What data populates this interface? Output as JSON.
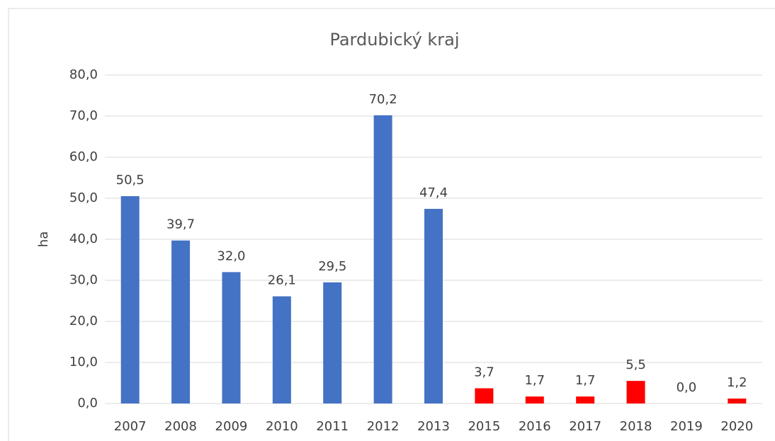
{
  "chart_data": {
    "type": "bar",
    "title": "Pardubický kraj",
    "y_label": "ha",
    "categories": [
      "2007",
      "2008",
      "2009",
      "2010",
      "2011",
      "2012",
      "2013",
      "2015",
      "2016",
      "2017",
      "2018",
      "2019",
      "2020"
    ],
    "values": [
      50.5,
      39.7,
      32.0,
      26.1,
      29.5,
      70.2,
      47.4,
      3.7,
      1.7,
      1.7,
      5.5,
      0.0,
      1.2
    ],
    "value_labels": [
      "50,5",
      "39,7",
      "32,0",
      "26,1",
      "29,5",
      "70,2",
      "47,4",
      "3,7",
      "1,7",
      "1,7",
      "5,5",
      "0,0",
      "1,2"
    ],
    "colors": [
      "#4472c4",
      "#4472c4",
      "#4472c4",
      "#4472c4",
      "#4472c4",
      "#4472c4",
      "#4472c4",
      "#ff0000",
      "#ff0000",
      "#ff0000",
      "#ff0000",
      "#ff0000",
      "#ff0000"
    ],
    "ylim": [
      0,
      80
    ],
    "yticks": [
      {
        "value": 0,
        "label": "0,0"
      },
      {
        "value": 10,
        "label": "10,0"
      },
      {
        "value": 20,
        "label": "20,0"
      },
      {
        "value": 30,
        "label": "30,0"
      },
      {
        "value": 40,
        "label": "40,0"
      },
      {
        "value": 50,
        "label": "50,0"
      },
      {
        "value": 60,
        "label": "60,0"
      },
      {
        "value": 70,
        "label": "70,0"
      },
      {
        "value": 80,
        "label": "80,0"
      }
    ],
    "grid": true
  }
}
